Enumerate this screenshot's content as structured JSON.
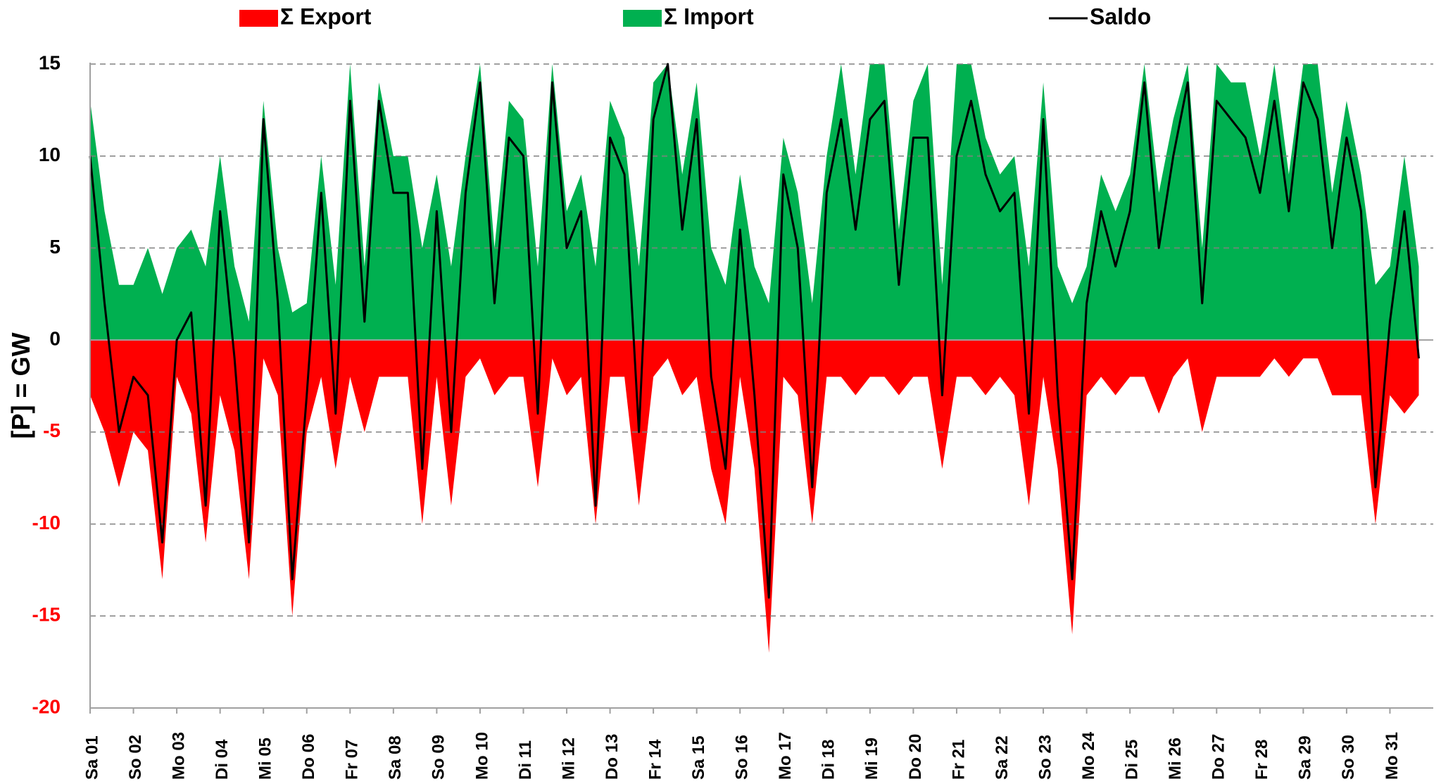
{
  "chart_data": {
    "type": "area",
    "y_label": "[P]  = GW",
    "legend": "top",
    "grid": true,
    "ylim": [
      -20,
      15
    ],
    "yticks": [
      -20,
      -15,
      -10,
      -5,
      0,
      5,
      10,
      15
    ],
    "categories": [
      "Sa 01",
      null,
      null,
      "So 02",
      null,
      null,
      "Mo 03",
      null,
      null,
      "Di 04",
      null,
      null,
      "Mi 05",
      null,
      null,
      "Do 06",
      null,
      null,
      "Fr 07",
      null,
      null,
      "Sa 08",
      null,
      null,
      "So 09",
      null,
      null,
      "Mo 10",
      null,
      null,
      "Di 11",
      null,
      null,
      "Mi 12",
      null,
      null,
      "Do 13",
      null,
      null,
      "Fr 14",
      null,
      null,
      "Sa 15",
      null,
      null,
      "So 16",
      null,
      null,
      "Mo 17",
      null,
      null,
      "Di 18",
      null,
      null,
      "Mi 19",
      null,
      null,
      "Do 20",
      null,
      null,
      "Fr 21",
      null,
      null,
      "Sa 22",
      null,
      null,
      "So 23",
      null,
      null,
      "Mo 24",
      null,
      null,
      "Di 25",
      null,
      null,
      "Mi 26",
      null,
      null,
      "Do 27",
      null,
      null,
      "Fr 28",
      null,
      null,
      "Sa 29",
      null,
      null,
      "So 30",
      null,
      null,
      "Mo 31",
      null,
      null
    ],
    "series": [
      {
        "name": "Σ Export",
        "kind": "area",
        "color": "#ff0000",
        "values": [
          -3,
          -5,
          -8,
          -5,
          -6,
          -13,
          -2,
          -4,
          -11,
          -3,
          -6,
          -13,
          -1,
          -3,
          -15,
          -5,
          -2,
          -7,
          -2,
          -5,
          -2,
          -2,
          -2,
          -10,
          -2,
          -9,
          -2,
          -1,
          -3,
          -2,
          -2,
          -8,
          -1,
          -3,
          -2,
          -10,
          -2,
          -2,
          -9,
          -2,
          -1,
          -3,
          -2,
          -7,
          -10,
          -2,
          -7,
          -17,
          -2,
          -3,
          -10,
          -2,
          -2,
          -3,
          -2,
          -2,
          -3,
          -2,
          -2,
          -7,
          -2,
          -2,
          -3,
          -2,
          -3,
          -9,
          -2,
          -7,
          -16,
          -3,
          -2,
          -3,
          -2,
          -2,
          -4,
          -2,
          -1,
          -5,
          -2,
          -2,
          -2,
          -2,
          -1,
          -2,
          -1,
          -1,
          -3,
          -3,
          -3,
          -10,
          -3,
          -4,
          -3
        ]
      },
      {
        "name": "Σ Import",
        "kind": "area",
        "color": "#00b050",
        "values": [
          13,
          7,
          3,
          3,
          5,
          2.5,
          5,
          6,
          4,
          10,
          4,
          1,
          13,
          5,
          1.5,
          2,
          10,
          3,
          15,
          4,
          14,
          10,
          10,
          5,
          9,
          4,
          10,
          15,
          5,
          13,
          12,
          4,
          15,
          7,
          9,
          4,
          13,
          11,
          4,
          14,
          15,
          9,
          14,
          5,
          3,
          9,
          4,
          2,
          11,
          8,
          2,
          10,
          15,
          9,
          15,
          15,
          6,
          13,
          15,
          3,
          15,
          15,
          11,
          9,
          10,
          4,
          14,
          4,
          2,
          4,
          9,
          7,
          9,
          15,
          8,
          12,
          15,
          5,
          15,
          14,
          14,
          10,
          15,
          9,
          15,
          15,
          8,
          13,
          9,
          3,
          4,
          10,
          4
        ]
      },
      {
        "name": "Saldo",
        "kind": "line",
        "color": "#000000",
        "values": [
          10,
          2,
          -5,
          -2,
          -3,
          -11,
          0,
          1.5,
          -9,
          7,
          -1,
          -11,
          12,
          2,
          -13,
          -3,
          8,
          -4,
          13,
          1,
          13,
          8,
          8,
          -7,
          7,
          -5,
          8,
          14,
          2,
          11,
          10,
          -4,
          14,
          5,
          7,
          -9,
          11,
          9,
          -5,
          12,
          15,
          6,
          12,
          -2,
          -7,
          6,
          -3,
          -14,
          9,
          5,
          -8,
          8,
          12,
          6,
          12,
          13,
          3,
          11,
          11,
          -3,
          10,
          13,
          9,
          7,
          8,
          -4,
          12,
          -3,
          -13,
          2,
          7,
          4,
          7,
          14,
          5,
          10,
          14,
          2,
          13,
          12,
          11,
          8,
          13,
          7,
          14,
          12,
          5,
          11,
          7,
          -8,
          1,
          7,
          -1
        ]
      }
    ]
  }
}
